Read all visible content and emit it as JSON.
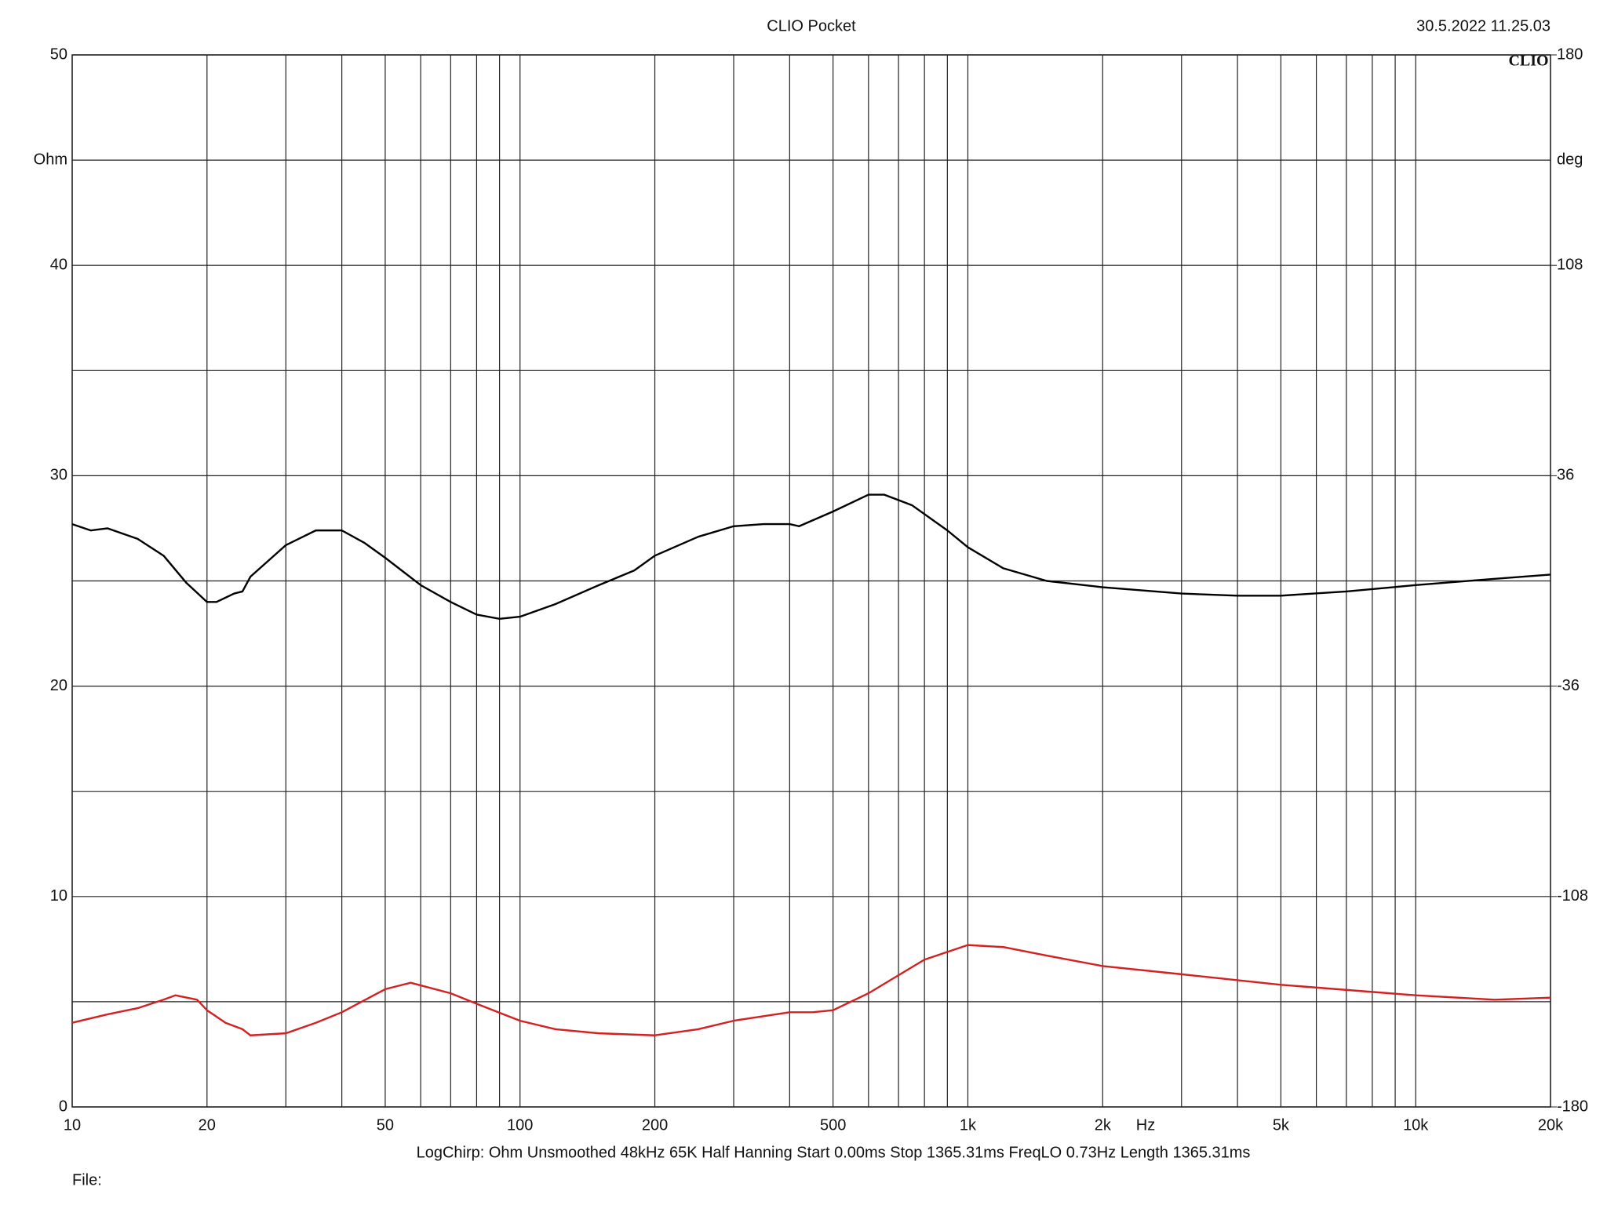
{
  "chart_data": {
    "type": "line",
    "title": "CLIO Pocket",
    "timestamp": "30.5.2022 11.25.03",
    "logo": "CLIO",
    "y_label": "Ohm",
    "y2_label": "deg",
    "x_label": "Hz",
    "footer": "LogChirp:  Ohm  Unsmoothed  48kHz  65K  Half Hanning  Start 0.00ms  Stop 1365.31ms  FreqLO 0.73Hz  Length 1365.31ms",
    "file_label": "File:",
    "xscale": "log",
    "grid": true,
    "xlim": [
      10,
      20000
    ],
    "xticks": [
      10,
      20,
      50,
      100,
      200,
      500,
      {
        "value": 1000,
        "label": "1k"
      },
      {
        "value": 2000,
        "label": "2k"
      },
      {
        "value": 5000,
        "label": "5k"
      },
      {
        "value": 10000,
        "label": "10k"
      },
      {
        "value": 20000,
        "label": "20k"
      }
    ],
    "x_minor_grid": [
      30,
      40,
      60,
      70,
      80,
      90,
      300,
      400,
      600,
      700,
      800,
      900,
      3000,
      4000,
      6000,
      7000,
      8000,
      9000
    ],
    "ylim": [
      0,
      50
    ],
    "yticks": [
      0,
      10,
      20,
      30,
      40,
      50
    ],
    "y_minor_grid": [
      5,
      15,
      25,
      35,
      45
    ],
    "y2lim": [
      -180,
      180
    ],
    "y2ticks": [
      -180,
      -108,
      -36,
      36,
      108,
      180
    ],
    "series": [
      {
        "color": "#000000",
        "x": [
          10,
          11,
          12,
          14,
          16,
          18,
          20,
          21,
          23,
          24,
          25,
          30,
          35,
          40,
          45,
          50,
          60,
          70,
          80,
          90,
          100,
          120,
          150,
          180,
          200,
          250,
          300,
          350,
          400,
          420,
          500,
          600,
          650,
          750,
          900,
          1000,
          1200,
          1500,
          2000,
          3000,
          4000,
          5000,
          7000,
          10000,
          15000,
          20000
        ],
        "values": [
          27.7,
          27.4,
          27.5,
          27.0,
          26.2,
          24.9,
          24.0,
          24.0,
          24.4,
          24.5,
          25.2,
          26.7,
          27.4,
          27.4,
          26.8,
          26.1,
          24.8,
          24.0,
          23.4,
          23.2,
          23.3,
          23.9,
          24.8,
          25.5,
          26.2,
          27.1,
          27.6,
          27.7,
          27.7,
          27.6,
          28.3,
          29.1,
          29.1,
          28.6,
          27.4,
          26.6,
          25.6,
          25.0,
          24.7,
          24.4,
          24.3,
          24.3,
          24.5,
          24.8,
          25.1,
          25.3
        ]
      },
      {
        "color": "#d42020",
        "axis": "y2",
        "x": [
          10,
          12,
          14,
          16,
          17,
          19,
          20,
          22,
          24,
          25,
          30,
          35,
          40,
          50,
          57,
          70,
          80,
          100,
          120,
          150,
          200,
          250,
          300,
          400,
          450,
          500,
          600,
          800,
          1000,
          1200,
          1500,
          2000,
          3000,
          5000,
          10000,
          15000,
          20000
        ],
        "values": [
          -151.2,
          -148.3,
          -146.2,
          -143.3,
          -141.8,
          -143.3,
          -146.9,
          -151.2,
          -153.4,
          -155.5,
          -154.8,
          -151.2,
          -147.6,
          -139.7,
          -137.5,
          -141.1,
          -144.7,
          -150.5,
          -153.4,
          -154.8,
          -155.5,
          -153.4,
          -150.5,
          -147.6,
          -147.6,
          -146.9,
          -141.1,
          -129.6,
          -124.6,
          -125.3,
          -128.2,
          -131.8,
          -134.6,
          -138.2,
          -141.8,
          -143.3,
          -142.6
        ]
      }
    ]
  }
}
